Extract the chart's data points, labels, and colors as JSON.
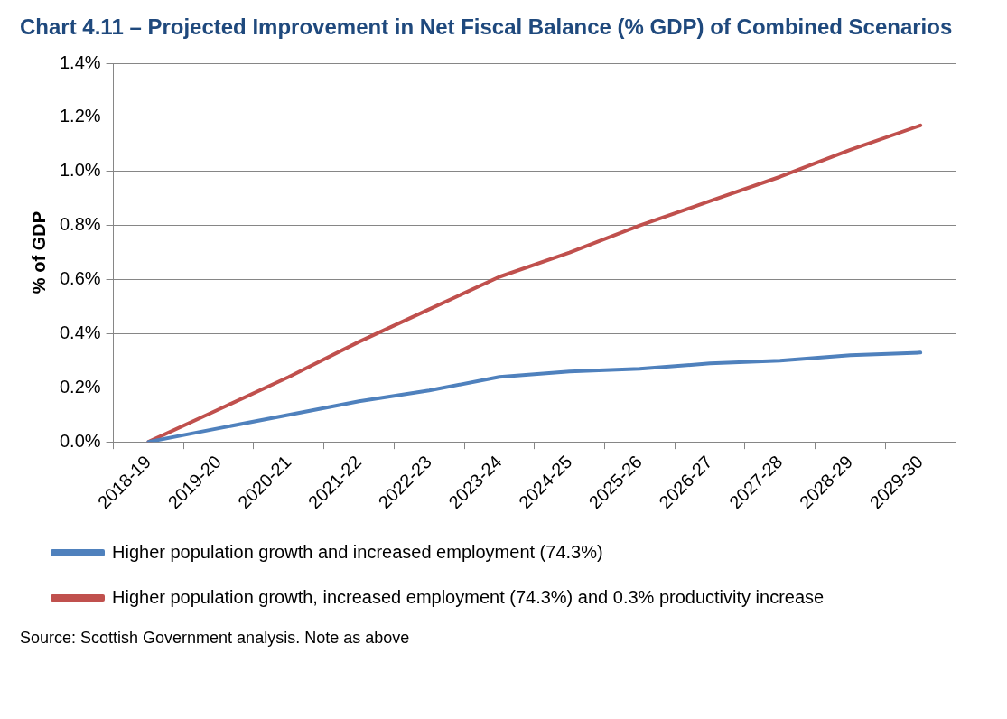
{
  "chart_data": {
    "type": "line",
    "title": "Chart 4.11 – Projected Improvement in Net Fiscal Balance (% GDP) of Combined Scenarios",
    "ylabel": "% of GDP",
    "categories": [
      "2018-19",
      "2019-20",
      "2020-21",
      "2021-22",
      "2022-23",
      "2023-24",
      "2024-25",
      "2025-26",
      "2026-27",
      "2027-28",
      "2028-29",
      "2029-30"
    ],
    "series": [
      {
        "name": "Higher population growth and increased employment (74.3%)",
        "color": "#4f81bd",
        "values": [
          0,
          0.05,
          0.1,
          0.15,
          0.19,
          0.24,
          0.26,
          0.27,
          0.29,
          0.3,
          0.32,
          0.33
        ]
      },
      {
        "name": "Higher population growth, increased employment (74.3%) and 0.3% productivity increase",
        "color": "#c0504d",
        "values": [
          0,
          0.12,
          0.24,
          0.37,
          0.49,
          0.61,
          0.7,
          0.8,
          0.89,
          0.98,
          1.08,
          1.17
        ]
      }
    ],
    "ylim": [
      0,
      1.4
    ],
    "yticks": [
      {
        "value": 0,
        "label": "0.0%"
      },
      {
        "value": 0.2,
        "label": "0.2%"
      },
      {
        "value": 0.4,
        "label": "0.4%"
      },
      {
        "value": 0.6,
        "label": "0.6%"
      },
      {
        "value": 0.8,
        "label": "0.8%"
      },
      {
        "value": 1.0,
        "label": "1.0%"
      },
      {
        "value": 1.2,
        "label": "1.2%"
      },
      {
        "value": 1.4,
        "label": "1.4%"
      }
    ],
    "grid": "y",
    "legend": "bottom",
    "marker": "none",
    "line_style": "solid",
    "annotations": [
      "Source: Scottish Government analysis. Note as above"
    ]
  }
}
